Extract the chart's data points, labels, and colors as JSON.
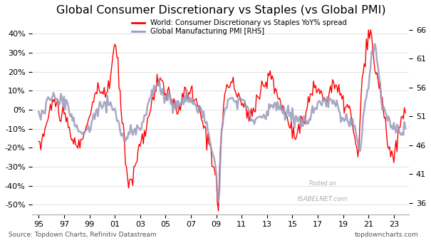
{
  "title": "Global Consumer Discretionary vs Staples (vs Global PMI)",
  "legend1": "World: Consumer Discretionary vs Staples YoY% spread",
  "legend2": "Global Manufacturing PMI [RHS]",
  "source_text": "Source: Topdown Charts, Refinitiv Datastream",
  "website_text": "topdowncharts.com",
  "watermark1": "Posted on",
  "watermark2": "ISABELNET.com",
  "xlim": [
    1994.5,
    2024.2
  ],
  "ylim_left": [
    -55,
    48
  ],
  "ylim_right": [
    34,
    68
  ],
  "yticks_left": [
    -50,
    -40,
    -30,
    -20,
    -10,
    0,
    10,
    20,
    30,
    40
  ],
  "yticks_right": [
    36,
    41,
    46,
    51,
    56,
    61,
    66
  ],
  "red_color": "#FF0000",
  "blue_color": "#9999BB",
  "bg_color": "#FFFFFF",
  "grid_color": "#DDDDDD",
  "title_fontsize": 11.5,
  "tick_fontsize": 8
}
